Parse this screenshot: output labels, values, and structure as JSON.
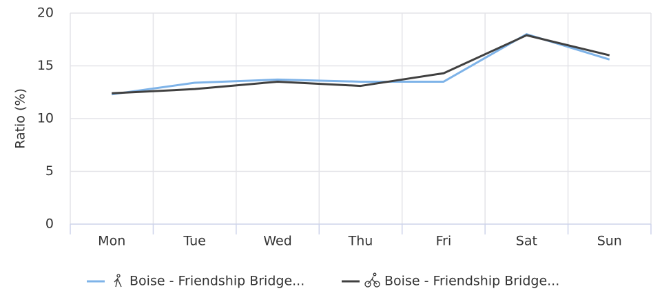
{
  "chart_data": {
    "type": "line",
    "y_label": "Ratio (%)",
    "categories": [
      "Mon",
      "Tue",
      "Wed",
      "Thu",
      "Fri",
      "Sat",
      "Sun"
    ],
    "series": [
      {
        "name": "Boise - Friendship Bridge...",
        "color": "#7eb3e8",
        "values": [
          12.3,
          13.4,
          13.7,
          13.5,
          13.5,
          18.0,
          15.6
        ]
      },
      {
        "name": "Boise - Friendship Bridge...",
        "color": "#404040",
        "values": [
          12.4,
          12.8,
          13.5,
          13.1,
          14.3,
          17.9,
          16.0
        ]
      }
    ],
    "ylim": [
      0,
      20
    ],
    "yticks": [
      0,
      5,
      10,
      15,
      20
    ],
    "grid": true,
    "legend": "bottom"
  }
}
